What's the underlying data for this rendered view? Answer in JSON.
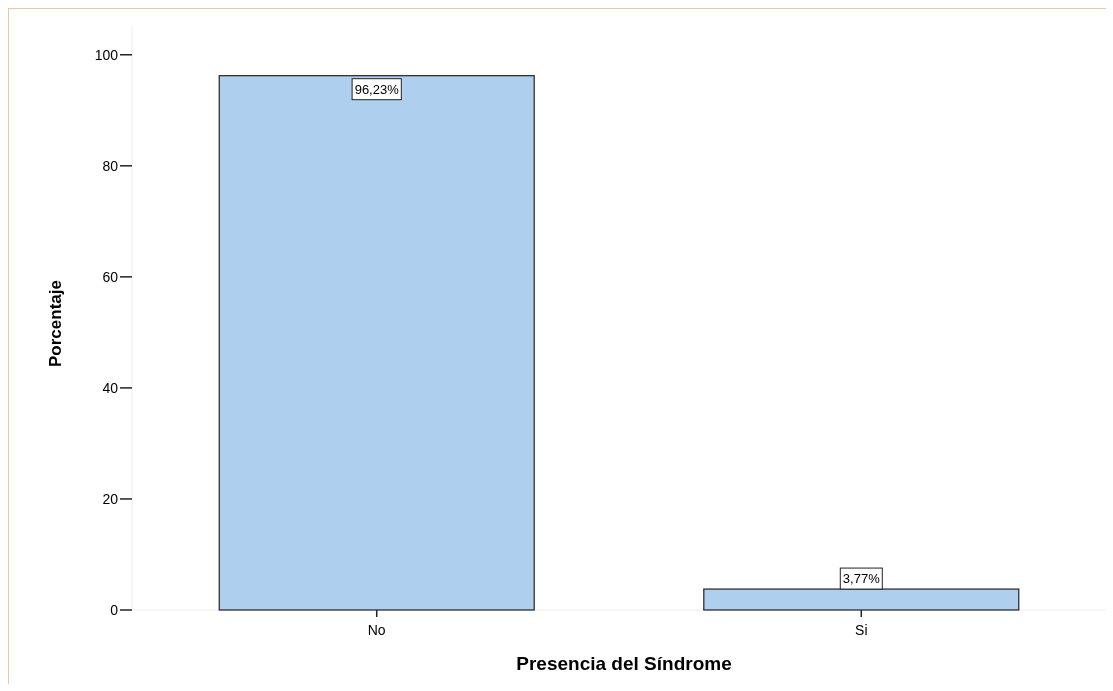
{
  "chart_data": {
    "type": "bar",
    "xlabel": "Presencia del Síndrome",
    "ylabel": "Porcentaje",
    "categories": [
      "No",
      "Si"
    ],
    "values": [
      96.23,
      3.77
    ],
    "value_labels": [
      "96,23%",
      "3,77%"
    ],
    "color": "#aecfed",
    "ylim": [
      0,
      105
    ],
    "yticks": [
      0,
      20,
      40,
      60,
      80,
      100
    ],
    "grid": false
  }
}
